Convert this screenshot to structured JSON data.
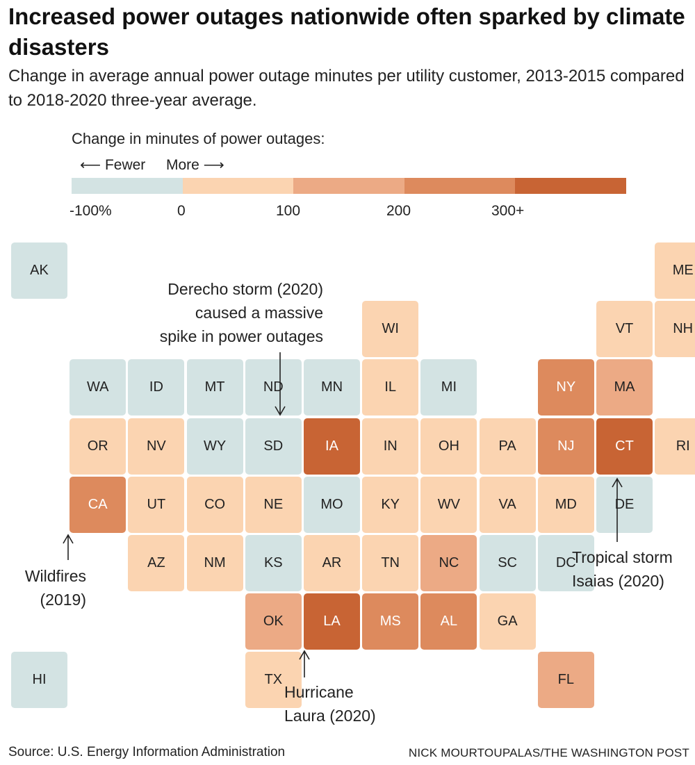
{
  "header": {
    "title": "Increased power outages nationwide often sparked by climate disasters",
    "subtitle": "Change in average annual power outage minutes per utility customer, 2013-2015 compared to 2018-2020 three-year average."
  },
  "legend": {
    "title": "Change in minutes of power outages:",
    "fewer": "⟵ Fewer",
    "more": "More ⟶",
    "ticks": [
      "-100%",
      "0",
      "100",
      "200",
      "300+"
    ],
    "colors": [
      "#d3e3e3",
      "#fbd4b1",
      "#ecaa85",
      "#dd8a5d",
      "#c86434"
    ]
  },
  "colors": {
    "fewer": "#d3e3e3",
    "c0": "#fbd4b1",
    "c1": "#ecaa85",
    "c2": "#dd8a5d",
    "c3": "#c86434"
  },
  "states": [
    {
      "abbr": "AK",
      "col": 0,
      "row": 0,
      "bin": "fewer"
    },
    {
      "abbr": "ME",
      "col": 11,
      "row": 0,
      "bin": "c0"
    },
    {
      "abbr": "WI",
      "col": 6,
      "row": 1,
      "bin": "c0"
    },
    {
      "abbr": "VT",
      "col": 10,
      "row": 1,
      "bin": "c0"
    },
    {
      "abbr": "NH",
      "col": 11,
      "row": 1,
      "bin": "c0"
    },
    {
      "abbr": "WA",
      "col": 1,
      "row": 2,
      "bin": "fewer"
    },
    {
      "abbr": "ID",
      "col": 2,
      "row": 2,
      "bin": "fewer"
    },
    {
      "abbr": "MT",
      "col": 3,
      "row": 2,
      "bin": "fewer"
    },
    {
      "abbr": "ND",
      "col": 4,
      "row": 2,
      "bin": "fewer"
    },
    {
      "abbr": "MN",
      "col": 5,
      "row": 2,
      "bin": "fewer"
    },
    {
      "abbr": "IL",
      "col": 6,
      "row": 2,
      "bin": "c0"
    },
    {
      "abbr": "MI",
      "col": 7,
      "row": 2,
      "bin": "fewer"
    },
    {
      "abbr": "NY",
      "col": 9,
      "row": 2,
      "bin": "c2"
    },
    {
      "abbr": "MA",
      "col": 10,
      "row": 2,
      "bin": "c1"
    },
    {
      "abbr": "OR",
      "col": 1,
      "row": 3,
      "bin": "c0"
    },
    {
      "abbr": "NV",
      "col": 2,
      "row": 3,
      "bin": "c0"
    },
    {
      "abbr": "WY",
      "col": 3,
      "row": 3,
      "bin": "fewer"
    },
    {
      "abbr": "SD",
      "col": 4,
      "row": 3,
      "bin": "fewer"
    },
    {
      "abbr": "IA",
      "col": 5,
      "row": 3,
      "bin": "c3"
    },
    {
      "abbr": "IN",
      "col": 6,
      "row": 3,
      "bin": "c0"
    },
    {
      "abbr": "OH",
      "col": 7,
      "row": 3,
      "bin": "c0"
    },
    {
      "abbr": "PA",
      "col": 8,
      "row": 3,
      "bin": "c0"
    },
    {
      "abbr": "NJ",
      "col": 9,
      "row": 3,
      "bin": "c2"
    },
    {
      "abbr": "CT",
      "col": 10,
      "row": 3,
      "bin": "c3"
    },
    {
      "abbr": "RI",
      "col": 11,
      "row": 3,
      "bin": "c0"
    },
    {
      "abbr": "CA",
      "col": 1,
      "row": 4,
      "bin": "c2"
    },
    {
      "abbr": "UT",
      "col": 2,
      "row": 4,
      "bin": "c0"
    },
    {
      "abbr": "CO",
      "col": 3,
      "row": 4,
      "bin": "c0"
    },
    {
      "abbr": "NE",
      "col": 4,
      "row": 4,
      "bin": "c0"
    },
    {
      "abbr": "MO",
      "col": 5,
      "row": 4,
      "bin": "fewer"
    },
    {
      "abbr": "KY",
      "col": 6,
      "row": 4,
      "bin": "c0"
    },
    {
      "abbr": "WV",
      "col": 7,
      "row": 4,
      "bin": "c0"
    },
    {
      "abbr": "VA",
      "col": 8,
      "row": 4,
      "bin": "c0"
    },
    {
      "abbr": "MD",
      "col": 9,
      "row": 4,
      "bin": "c0"
    },
    {
      "abbr": "DE",
      "col": 10,
      "row": 4,
      "bin": "fewer"
    },
    {
      "abbr": "AZ",
      "col": 2,
      "row": 5,
      "bin": "c0"
    },
    {
      "abbr": "NM",
      "col": 3,
      "row": 5,
      "bin": "c0"
    },
    {
      "abbr": "KS",
      "col": 4,
      "row": 5,
      "bin": "fewer"
    },
    {
      "abbr": "AR",
      "col": 5,
      "row": 5,
      "bin": "c0"
    },
    {
      "abbr": "TN",
      "col": 6,
      "row": 5,
      "bin": "c0"
    },
    {
      "abbr": "NC",
      "col": 7,
      "row": 5,
      "bin": "c1"
    },
    {
      "abbr": "SC",
      "col": 8,
      "row": 5,
      "bin": "fewer"
    },
    {
      "abbr": "DC",
      "col": 9,
      "row": 5,
      "bin": "fewer"
    },
    {
      "abbr": "OK",
      "col": 4,
      "row": 6,
      "bin": "c1"
    },
    {
      "abbr": "LA",
      "col": 5,
      "row": 6,
      "bin": "c3"
    },
    {
      "abbr": "MS",
      "col": 6,
      "row": 6,
      "bin": "c2"
    },
    {
      "abbr": "AL",
      "col": 7,
      "row": 6,
      "bin": "c2"
    },
    {
      "abbr": "GA",
      "col": 8,
      "row": 6,
      "bin": "c0"
    },
    {
      "abbr": "HI",
      "col": 0,
      "row": 7,
      "bin": "fewer"
    },
    {
      "abbr": "TX",
      "col": 4,
      "row": 7,
      "bin": "c0"
    },
    {
      "abbr": "FL",
      "col": 9,
      "row": 7,
      "bin": "c1"
    }
  ],
  "annotations": {
    "derecho": [
      "Derecho storm (2020)",
      "caused a massive",
      "spike in power outages"
    ],
    "wildfires": [
      "Wildfires",
      "(2019)"
    ],
    "laura": [
      "Hurricane",
      "Laura (2020)"
    ],
    "isaias": [
      "Tropical storm",
      "Isaias (2020)"
    ]
  },
  "footer": {
    "source": "Source: U.S. Energy Information Administration",
    "credit": "NICK MOURTOUPALAS/THE WASHINGTON POST"
  }
}
